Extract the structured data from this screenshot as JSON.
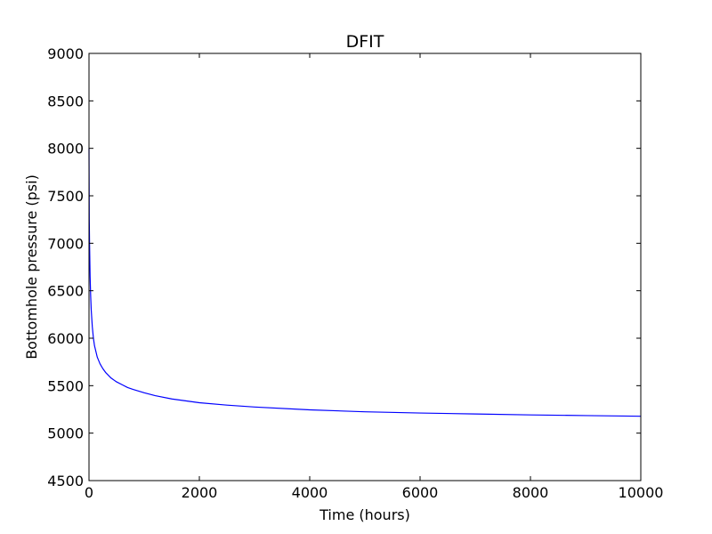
{
  "chart_data": {
    "type": "line",
    "title": "DFIT",
    "xlabel": "Time (hours)",
    "ylabel": "Bottomhole pressure (psi)",
    "xlim": [
      0,
      10000
    ],
    "ylim": [
      4500,
      9000
    ],
    "x_ticks": [
      0,
      2000,
      4000,
      6000,
      8000,
      10000
    ],
    "y_ticks": [
      4500,
      5000,
      5500,
      6000,
      6500,
      7000,
      7500,
      8000,
      8500,
      9000
    ],
    "grid": false,
    "line_color": "#0000ff",
    "series": [
      {
        "x": [
          0,
          5,
          10,
          20,
          30,
          40,
          60,
          80,
          100,
          150,
          200,
          250,
          300,
          400,
          500,
          600,
          700,
          800,
          1000,
          1200,
          1500,
          2000,
          2500,
          3000,
          4000,
          5000,
          6000,
          7000,
          8000,
          9000,
          10000
        ],
        "values": [
          8000,
          7250,
          7000,
          6650,
          6450,
          6300,
          6120,
          6000,
          5920,
          5800,
          5730,
          5680,
          5640,
          5580,
          5540,
          5510,
          5480,
          5460,
          5425,
          5395,
          5360,
          5320,
          5295,
          5275,
          5245,
          5225,
          5212,
          5202,
          5192,
          5185,
          5178
        ]
      }
    ]
  }
}
